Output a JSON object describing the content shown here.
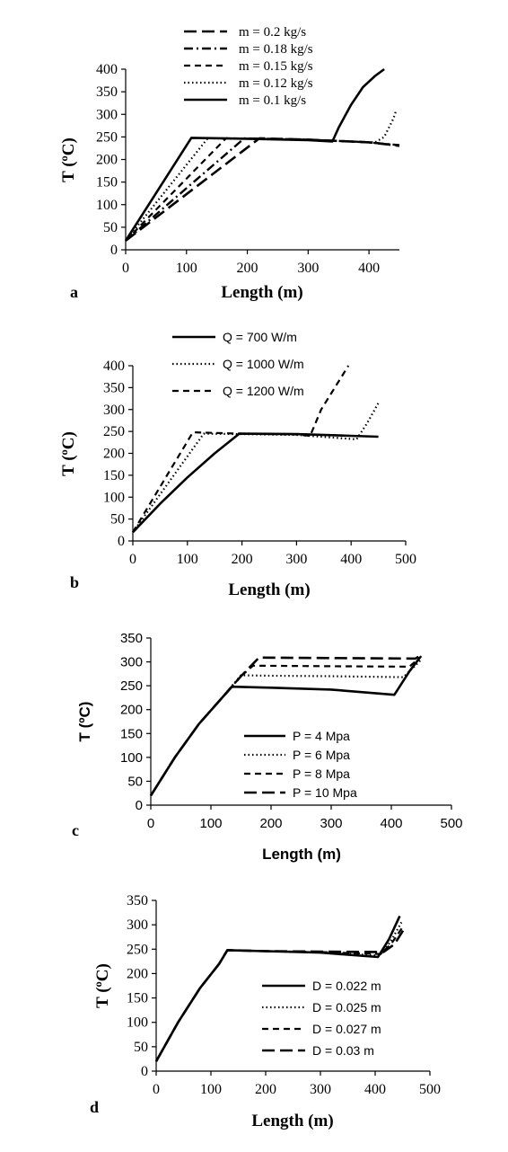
{
  "chart_data": [
    {
      "panel_label": "a",
      "type": "line",
      "xlabel": "Length (m)",
      "ylabel": "T (ºC)",
      "xlim": [
        0,
        450
      ],
      "ylim": [
        0,
        400
      ],
      "xticks": [
        0,
        100,
        200,
        300,
        400
      ],
      "yticks": [
        0,
        50,
        100,
        150,
        200,
        250,
        300,
        350,
        400
      ],
      "grid": false,
      "legend_position": "top",
      "series": [
        {
          "name": "m = 0.2 kg/s",
          "dash": "long-dash",
          "x": [
            0,
            220,
            300,
            400,
            440,
            450
          ],
          "y": [
            20,
            247,
            244,
            238,
            232,
            230
          ]
        },
        {
          "name": "m = 0.18 kg/s",
          "dash": "dash-dot",
          "x": [
            0,
            195,
            300,
            400,
            440,
            450
          ],
          "y": [
            20,
            247,
            244,
            238,
            233,
            232
          ]
        },
        {
          "name": "m = 0.15 kg/s",
          "dash": "dash",
          "x": [
            0,
            165,
            300,
            400,
            440,
            450
          ],
          "y": [
            20,
            247,
            244,
            238,
            232,
            231
          ]
        },
        {
          "name": "m = 0.12 kg/s",
          "dash": "dot",
          "x": [
            0,
            135,
            300,
            410,
            425,
            440,
            445
          ],
          "y": [
            20,
            247,
            244,
            238,
            250,
            290,
            310
          ]
        },
        {
          "name": "m = 0.1 kg/s",
          "dash": "solid",
          "x": [
            0,
            108,
            200,
            300,
            340,
            350,
            370,
            390,
            410,
            425
          ],
          "y": [
            20,
            248,
            246,
            243,
            240,
            270,
            320,
            360,
            385,
            400
          ]
        }
      ]
    },
    {
      "panel_label": "b",
      "type": "line",
      "xlabel": "Length (m)",
      "ylabel": "T  (ºC)",
      "xlim": [
        0,
        500
      ],
      "ylim": [
        0,
        400
      ],
      "xticks": [
        0,
        100,
        200,
        300,
        400,
        500
      ],
      "yticks": [
        0,
        50,
        100,
        150,
        200,
        250,
        300,
        350,
        400
      ],
      "grid": false,
      "legend_position": "top",
      "series": [
        {
          "name": "Q = 700 W/m",
          "dash": "solid",
          "x": [
            0,
            50,
            100,
            150,
            195,
            300,
            400,
            450
          ],
          "y": [
            20,
            85,
            145,
            200,
            245,
            244,
            240,
            238
          ]
        },
        {
          "name": "Q = 1000 W/m",
          "dash": "dot",
          "x": [
            0,
            130,
            200,
            300,
            410,
            430,
            450
          ],
          "y": [
            20,
            245,
            244,
            242,
            232,
            270,
            315
          ]
        },
        {
          "name": "Q = 1200 W/m",
          "dash": "dash",
          "x": [
            0,
            110,
            200,
            300,
            325,
            345,
            370,
            395
          ],
          "y": [
            20,
            248,
            245,
            243,
            240,
            300,
            350,
            400
          ]
        }
      ]
    },
    {
      "panel_label": "c",
      "type": "line",
      "xlabel": "Length (m)",
      "ylabel": "T  (ºC)",
      "xlim": [
        0,
        500
      ],
      "ylim": [
        0,
        350
      ],
      "xticks": [
        0,
        100,
        200,
        300,
        400,
        500
      ],
      "yticks": [
        0,
        50,
        100,
        150,
        200,
        250,
        300,
        350
      ],
      "grid": false,
      "legend_position": "center",
      "series": [
        {
          "name": "P = 4 Mpa",
          "dash": "solid",
          "x": [
            0,
            40,
            80,
            115,
            135,
            200,
            300,
            405,
            430,
            448
          ],
          "y": [
            20,
            100,
            170,
            220,
            248,
            246,
            242,
            231,
            280,
            310
          ]
        },
        {
          "name": "P = 6 Mpa",
          "dash": "dot",
          "x": [
            0,
            40,
            80,
            115,
            150,
            200,
            300,
            420,
            450
          ],
          "y": [
            20,
            100,
            170,
            220,
            272,
            271,
            270,
            268,
            305
          ]
        },
        {
          "name": "P = 8 Mpa",
          "dash": "dash",
          "x": [
            0,
            40,
            80,
            115,
            150,
            170,
            300,
            430,
            450
          ],
          "y": [
            20,
            100,
            170,
            220,
            270,
            292,
            291,
            290,
            312
          ]
        },
        {
          "name": "P = 10 Mpa",
          "dash": "long-dash",
          "x": [
            0,
            40,
            80,
            115,
            150,
            180,
            300,
            440,
            452
          ],
          "y": [
            20,
            100,
            170,
            220,
            270,
            309,
            308,
            307,
            316
          ]
        }
      ]
    },
    {
      "panel_label": "d",
      "type": "line",
      "xlabel": "Length (m)",
      "ylabel": "T (ºC)",
      "xlim": [
        0,
        500
      ],
      "ylim": [
        0,
        350
      ],
      "xticks": [
        0,
        100,
        200,
        300,
        400,
        500
      ],
      "yticks": [
        0,
        50,
        100,
        150,
        200,
        250,
        300,
        350
      ],
      "grid": false,
      "legend_position": "center-right",
      "series": [
        {
          "name": "D = 0.022 m",
          "dash": "solid",
          "x": [
            0,
            40,
            80,
            115,
            130,
            200,
            300,
            405,
            425,
            445
          ],
          "y": [
            20,
            100,
            170,
            220,
            248,
            246,
            243,
            234,
            270,
            318
          ]
        },
        {
          "name": "D = 0.025 m",
          "dash": "dot",
          "x": [
            0,
            40,
            80,
            115,
            130,
            200,
            300,
            408,
            428,
            448
          ],
          "y": [
            20,
            100,
            170,
            220,
            248,
            246,
            243,
            237,
            265,
            305
          ]
        },
        {
          "name": "D = 0.027 m",
          "dash": "dash",
          "x": [
            0,
            40,
            80,
            115,
            130,
            200,
            300,
            410,
            430,
            450
          ],
          "y": [
            20,
            100,
            170,
            220,
            248,
            246,
            244,
            240,
            262,
            295
          ]
        },
        {
          "name": "D = 0.03 m",
          "dash": "long-dash",
          "x": [
            0,
            40,
            80,
            115,
            130,
            200,
            300,
            415,
            435,
            452
          ],
          "y": [
            20,
            100,
            170,
            220,
            248,
            246,
            245,
            244,
            260,
            290
          ]
        }
      ]
    }
  ]
}
